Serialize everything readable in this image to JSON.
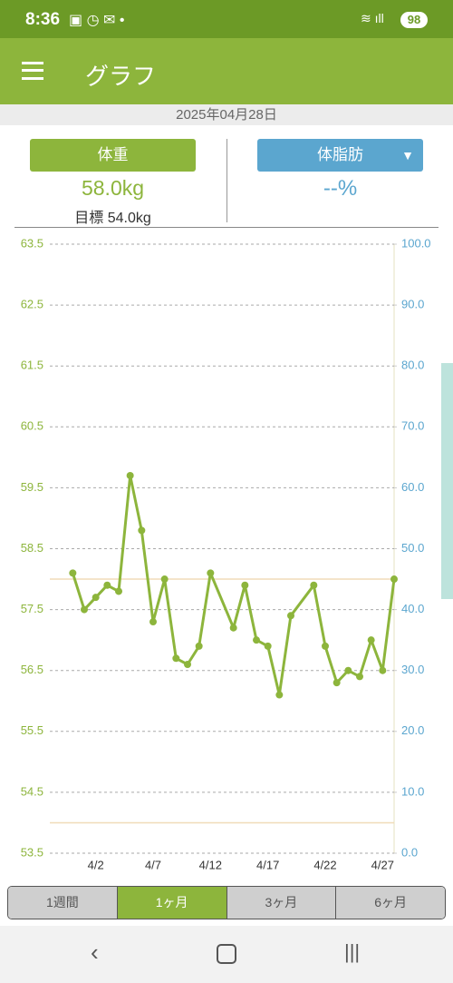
{
  "status": {
    "time": "8:36",
    "battery": "98"
  },
  "header": {
    "title": "グラフ"
  },
  "date": "2025年04月28日",
  "panel": {
    "left_button": "体重",
    "left_value": "58.0kg",
    "left_goal": "目標 54.0kg",
    "right_button": "体脂肪",
    "right_value": "--%"
  },
  "tabs": [
    "1週間",
    "1ヶ月",
    "3ヶ月",
    "6ヶ月"
  ],
  "active_tab": 1,
  "chart_data": {
    "type": "line",
    "x": [
      "3/31",
      "4/1",
      "4/2",
      "4/3",
      "4/4",
      "4/5",
      "4/6",
      "4/7",
      "4/8",
      "4/9",
      "4/10",
      "4/11",
      "4/12",
      "4/14",
      "4/15",
      "4/16",
      "4/17",
      "4/18",
      "4/19",
      "4/21",
      "4/22",
      "4/23",
      "4/24",
      "4/25",
      "4/26",
      "4/27",
      "4/28"
    ],
    "series": [
      {
        "color": "#8db53c",
        "values": [
          58.1,
          57.5,
          57.7,
          57.9,
          57.8,
          59.7,
          58.8,
          57.3,
          58.0,
          56.7,
          56.6,
          56.9,
          58.1,
          57.2,
          57.9,
          57.0,
          56.9,
          56.1,
          57.4,
          57.9,
          56.9,
          56.3,
          56.5,
          56.4,
          57.0,
          56.5,
          58.0
        ]
      }
    ],
    "xlim": [
      "3/29",
      "4/28"
    ],
    "xticks": [
      "4/2",
      "4/7",
      "4/12",
      "4/17",
      "4/22",
      "4/27"
    ],
    "ylim": [
      53.5,
      63.5
    ],
    "yticks": [
      53.5,
      54.5,
      55.5,
      56.5,
      57.5,
      58.5,
      59.5,
      60.5,
      61.5,
      62.5,
      63.5
    ],
    "y2lim": [
      0,
      100
    ],
    "y2ticks": [
      {
        "value": 0,
        "label": "0.0"
      },
      {
        "value": 10,
        "label": "10.0"
      },
      {
        "value": 20,
        "label": "20.0"
      },
      {
        "value": 30,
        "label": "30.0"
      },
      {
        "value": 40,
        "label": "40.0"
      },
      {
        "value": 50,
        "label": "50.0"
      },
      {
        "value": 60,
        "label": "60.0"
      },
      {
        "value": 70,
        "label": "70.0"
      },
      {
        "value": 80,
        "label": "80.0"
      },
      {
        "value": 90,
        "label": "90.0"
      },
      {
        "value": 100,
        "label": "100.0"
      }
    ],
    "hlines": [
      58.0,
      54.0
    ],
    "hline_color": "#f0dcb8",
    "grid": true,
    "y_color": "#8db53c",
    "y2_color": "#5ba6cf"
  }
}
